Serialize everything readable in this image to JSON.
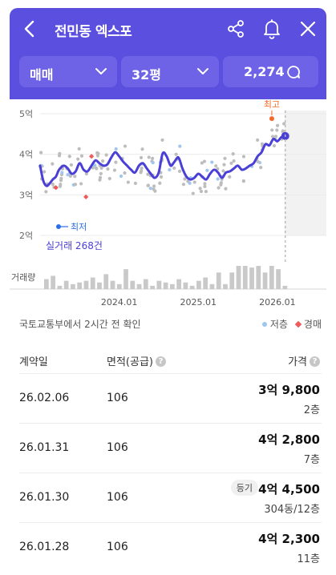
{
  "header": {
    "title": "전민동 엑스포",
    "filters": {
      "deal_type": "매매",
      "size": "32평",
      "talk_count": "2,274"
    }
  },
  "chart_data": {
    "type": "line",
    "title": "",
    "y_tick_labels": [
      "5억",
      "4억",
      "3억",
      "2억"
    ],
    "y_tick_values": [
      5,
      4,
      3,
      2
    ],
    "ylim": [
      2,
      5
    ],
    "y_unit": "억",
    "x_tick_labels": [
      "2024.01",
      "2025.01",
      "2026.01"
    ],
    "x_tick_values": [
      2024.0,
      2025.0,
      2026.0
    ],
    "xlim": [
      2023.0,
      2026.62
    ],
    "series": [
      {
        "x": [
          2023.0,
          2023.04,
          2023.08,
          2023.12,
          2023.16,
          2023.2,
          2023.24,
          2023.3,
          2023.35,
          2023.4,
          2023.45,
          2023.5,
          2023.55,
          2023.6,
          2023.65,
          2023.7,
          2023.75,
          2023.8,
          2023.85,
          2023.9,
          2023.95,
          2024.0,
          2024.05,
          2024.1,
          2024.15,
          2024.2,
          2024.25,
          2024.3,
          2024.35,
          2024.4,
          2024.45,
          2024.5,
          2024.55,
          2024.6,
          2024.65,
          2024.7,
          2024.75,
          2024.8,
          2024.85,
          2024.9,
          2024.95,
          2025.0,
          2025.05,
          2025.1,
          2025.15,
          2025.2,
          2025.25,
          2025.3,
          2025.35,
          2025.4,
          2025.45,
          2025.5,
          2025.55,
          2025.6,
          2025.65,
          2025.7,
          2025.75,
          2025.8,
          2025.85,
          2025.9,
          2025.95,
          2026.0,
          2026.05,
          2026.1
        ],
        "values": [
          3.72,
          3.35,
          3.22,
          3.28,
          3.38,
          3.45,
          3.62,
          3.72,
          3.65,
          3.52,
          3.58,
          3.78,
          3.62,
          3.58,
          3.72,
          3.85,
          3.78,
          3.72,
          3.75,
          3.92,
          4.05,
          3.95,
          3.82,
          3.72,
          3.62,
          3.55,
          3.72,
          3.78,
          3.65,
          3.52,
          3.42,
          3.55,
          4.02,
          3.95,
          3.72,
          3.82,
          3.92,
          3.65,
          3.45,
          3.38,
          3.42,
          3.52,
          3.45,
          3.38,
          3.52,
          3.62,
          3.55,
          3.42,
          3.55,
          3.58,
          3.65,
          3.72,
          3.62,
          3.65,
          3.72,
          3.78,
          3.95,
          4.05,
          4.25,
          4.22,
          4.38,
          4.32,
          4.42,
          4.45
        ]
      }
    ],
    "highlight_label": "최고",
    "low_label": "최저",
    "deal_count_label": "실거래 268건",
    "volume_label": "거래량",
    "volume_values": [
      6,
      8,
      2,
      5,
      3,
      4,
      5,
      7,
      4,
      9,
      5,
      3,
      12,
      5,
      3,
      6,
      2,
      5,
      4,
      3,
      6,
      4,
      2,
      5,
      7,
      3,
      10,
      3,
      10,
      14,
      14,
      13,
      14,
      10,
      14,
      12,
      2
    ]
  },
  "info_note": "국토교통부에서 2시간 전 확인",
  "legend": {
    "jeonse": "저층",
    "auction": "경매"
  },
  "table": {
    "headers": {
      "date": "계약일",
      "area": "면적(공급)",
      "price": "가격"
    },
    "help_glyph": "?",
    "rows": [
      {
        "date": "26.02.06",
        "area": "106",
        "price": "3억 9,800",
        "floor": "2층",
        "badge": ""
      },
      {
        "date": "26.01.31",
        "area": "106",
        "price": "4억 2,800",
        "floor": "7층",
        "badge": ""
      },
      {
        "date": "26.01.30",
        "area": "106",
        "price": "4억 4,500",
        "floor": "304동/12층",
        "badge": "등기"
      },
      {
        "date": "26.01.28",
        "area": "106",
        "price": "4억 2,300",
        "floor": "11층",
        "badge": ""
      }
    ]
  },
  "colors": {
    "primary": "#5b4fe0",
    "pill": "#6e63e6",
    "line": "#4a3fd6",
    "highlight": "#f26a2a",
    "low": "#2b6fe8",
    "jeonse_dot": "#9ec6ef",
    "auction_dot": "#ef5a5a",
    "scatter": "#bdbdbd",
    "volume_bar": "#c9c9c9"
  }
}
